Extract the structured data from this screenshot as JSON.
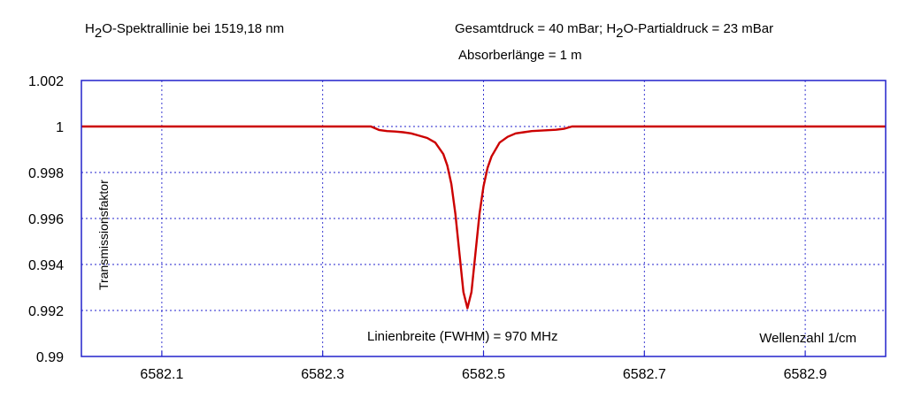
{
  "header": {
    "title_left_prefix": "H",
    "title_left_sub": "2",
    "title_left_rest": "O-Spektrallinie bei 1519,18 nm",
    "title_right_1_a": "Gesamtdruck = 40 mBar; H",
    "title_right_1_sub": "2",
    "title_right_1_b": "O-Partialdruck = 23 mBar",
    "title_right_2": "Absorberlänge = 1 m"
  },
  "chart_data": {
    "type": "line",
    "xlabel": "Wellenzahl 1/cm",
    "ylabel": "Transmissionsfaktor",
    "annotation": "Linienbreite (FWHM) = 970 MHz",
    "xlim": [
      6582.0,
      6583.0
    ],
    "ylim": [
      0.99,
      1.002
    ],
    "x_ticks": [
      6582.1,
      6582.3,
      6582.5,
      6582.7,
      6582.9
    ],
    "x_tick_labels": [
      "6582.1",
      "6582.3",
      "6582.5",
      "6582.7",
      "6582.9"
    ],
    "y_ticks": [
      0.99,
      0.992,
      0.994,
      0.996,
      0.998,
      1.0,
      1.002
    ],
    "y_tick_labels": [
      "0.99",
      "0.992",
      "0.994",
      "0.996",
      "0.998",
      "1",
      "1.002"
    ],
    "grid": true,
    "colors": {
      "line": "#cc0000",
      "axes": "#2222cc",
      "grid": "#2222cc"
    },
    "series": [
      {
        "x": [
          6582.0,
          6582.36,
          6582.37,
          6582.38,
          6582.39,
          6582.4,
          6582.41,
          6582.42,
          6582.43,
          6582.44,
          6582.45,
          6582.455,
          6582.46,
          6582.465,
          6582.47,
          6582.475,
          6582.48,
          6582.485,
          6582.49,
          6582.495,
          6582.5,
          6582.505,
          6582.51,
          6582.52,
          6582.53,
          6582.54,
          6582.55,
          6582.56,
          6582.57,
          6582.58,
          6582.59,
          6582.6,
          6582.61,
          6583.0
        ],
        "y": [
          1.0,
          1.0,
          0.99985,
          0.9998,
          0.99978,
          0.99975,
          0.9997,
          0.9996,
          0.9995,
          0.9993,
          0.9988,
          0.9983,
          0.9975,
          0.9962,
          0.9945,
          0.9928,
          0.9921,
          0.9928,
          0.9945,
          0.9962,
          0.9974,
          0.9982,
          0.9987,
          0.9993,
          0.99955,
          0.9997,
          0.99975,
          0.9998,
          0.99982,
          0.99984,
          0.99986,
          0.9999,
          1.0,
          1.0
        ]
      }
    ]
  }
}
